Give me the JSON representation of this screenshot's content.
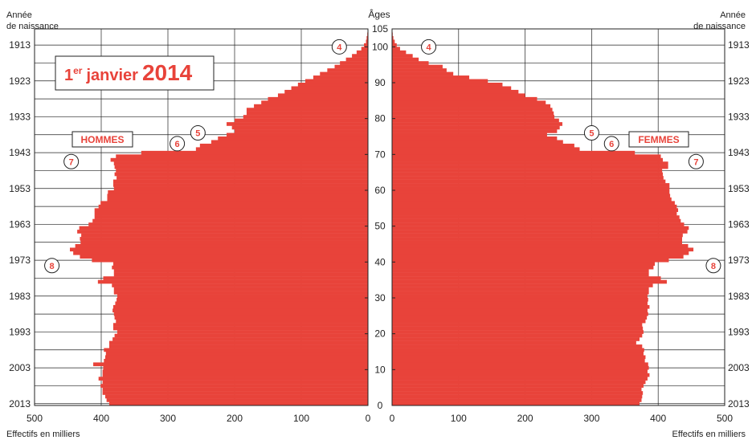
{
  "chart_data": {
    "type": "bar",
    "orientation": "horizontal-pyramid",
    "title": {
      "prefix": "1",
      "superscript": "er",
      "middle": "janvier",
      "year": "2014"
    },
    "left_label": "HOMMES",
    "right_label": "FEMMES",
    "top_left_label": [
      "Année",
      "de naissance"
    ],
    "top_right_label": [
      "Année",
      "de naissance"
    ],
    "center_axis_label": "Âges",
    "bottom_left_label": "Effectifs en milliers",
    "bottom_right_label": "Effectifs en milliers",
    "age_ticks": [
      0,
      10,
      20,
      30,
      40,
      50,
      60,
      70,
      80,
      90,
      100,
      105
    ],
    "age_tick_labels": [
      "0",
      "10",
      "20",
      "30",
      "40",
      "50",
      "60",
      "70",
      "80",
      "90",
      "100",
      "105"
    ],
    "birth_years": [
      {
        "year": "2013",
        "age": 0.5
      },
      {
        "year": "2003",
        "age": 10.5
      },
      {
        "year": "1993",
        "age": 20.5
      },
      {
        "year": "1983",
        "age": 30.5
      },
      {
        "year": "1973",
        "age": 40.5
      },
      {
        "year": "1963",
        "age": 50.5
      },
      {
        "year": "1953",
        "age": 60.5
      },
      {
        "year": "1943",
        "age": 70.5
      },
      {
        "year": "1933",
        "age": 80.5
      },
      {
        "year": "1923",
        "age": 90.5
      },
      {
        "year": "1913",
        "age": 100.5
      }
    ],
    "x_ticks_left": [
      500,
      400,
      300,
      200,
      100,
      0
    ],
    "x_ticks_left_labels": [
      "500",
      "400",
      "300",
      "200",
      "100",
      "0"
    ],
    "x_ticks_right": [
      0,
      100,
      200,
      300,
      400,
      500
    ],
    "x_ticks_right_labels": [
      "0",
      "100",
      "200",
      "300",
      "400",
      "500"
    ],
    "xlim": [
      0,
      500
    ],
    "ylim": [
      0,
      105
    ],
    "bar_color": "#e8433a",
    "ages": [
      0,
      1,
      2,
      3,
      4,
      5,
      6,
      7,
      8,
      9,
      10,
      11,
      12,
      13,
      14,
      15,
      16,
      17,
      18,
      19,
      20,
      21,
      22,
      23,
      24,
      25,
      26,
      27,
      28,
      29,
      30,
      31,
      32,
      33,
      34,
      35,
      36,
      37,
      38,
      39,
      40,
      41,
      42,
      43,
      44,
      45,
      46,
      47,
      48,
      49,
      50,
      51,
      52,
      53,
      54,
      55,
      56,
      57,
      58,
      59,
      60,
      61,
      62,
      63,
      64,
      65,
      66,
      67,
      68,
      69,
      70,
      71,
      72,
      73,
      74,
      75,
      76,
      77,
      78,
      79,
      80,
      81,
      82,
      83,
      84,
      85,
      86,
      87,
      88,
      89,
      90,
      91,
      92,
      93,
      94,
      95,
      96,
      97,
      98,
      99,
      100,
      101,
      102,
      103,
      104,
      105
    ],
    "series": [
      {
        "name": "HOMMES",
        "values": [
          388,
          392,
          394,
          398,
          398,
          401,
          398,
          404,
          398,
          398,
          397,
          412,
          396,
          394,
          393,
          396,
          388,
          388,
          383,
          380,
          376,
          382,
          382,
          378,
          380,
          381,
          383,
          382,
          379,
          377,
          376,
          381,
          381,
          384,
          405,
          397,
          381,
          381,
          384,
          382,
          414,
          432,
          442,
          447,
          439,
          431,
          432,
          430,
          436,
          433,
          419,
          413,
          410,
          410,
          410,
          404,
          401,
          391,
          391,
          390,
          381,
          382,
          382,
          377,
          380,
          378,
          380,
          381,
          386,
          378,
          340,
          258,
          252,
          235,
          225,
          212,
          200,
          204,
          212,
          200,
          187,
          182,
          182,
          171,
          160,
          150,
          135,
          125,
          115,
          105,
          94,
          82,
          72,
          61,
          50,
          42,
          33,
          24,
          17,
          10,
          6,
          3,
          2,
          1,
          0,
          0
        ]
      },
      {
        "name": "FEMMES",
        "values": [
          372,
          375,
          376,
          377,
          375,
          378,
          381,
          384,
          387,
          384,
          386,
          385,
          380,
          381,
          378,
          379,
          376,
          367,
          372,
          376,
          378,
          377,
          376,
          381,
          383,
          385,
          384,
          387,
          384,
          385,
          384,
          386,
          386,
          392,
          413,
          404,
          386,
          386,
          393,
          395,
          416,
          438,
          446,
          453,
          445,
          436,
          436,
          437,
          444,
          446,
          439,
          434,
          432,
          428,
          430,
          428,
          425,
          420,
          418,
          417,
          417,
          417,
          411,
          408,
          407,
          406,
          415,
          415,
          407,
          404,
          365,
          282,
          274,
          257,
          248,
          233,
          248,
          252,
          256,
          251,
          244,
          243,
          241,
          238,
          231,
          218,
          200,
          190,
          179,
          166,
          144,
          116,
          92,
          82,
          76,
          55,
          40,
          31,
          21,
          12,
          7,
          4,
          2,
          1,
          0,
          0
        ]
      }
    ],
    "annotations": [
      {
        "label": "4",
        "side": "left",
        "value": 43,
        "age": 100
      },
      {
        "label": "5",
        "side": "left",
        "value": 255,
        "age": 76
      },
      {
        "label": "6",
        "side": "left",
        "value": 286,
        "age": 73
      },
      {
        "label": "7",
        "side": "left",
        "value": 445,
        "age": 68
      },
      {
        "label": "8",
        "side": "left",
        "value": 474,
        "age": 39
      },
      {
        "label": "4",
        "side": "right",
        "value": 55,
        "age": 100
      },
      {
        "label": "5",
        "side": "right",
        "value": 300,
        "age": 76
      },
      {
        "label": "6",
        "side": "right",
        "value": 330,
        "age": 73
      },
      {
        "label": "7",
        "side": "right",
        "value": 457,
        "age": 68
      },
      {
        "label": "8",
        "side": "right",
        "value": 483,
        "age": 39
      }
    ],
    "grid": true,
    "legend": "none"
  }
}
